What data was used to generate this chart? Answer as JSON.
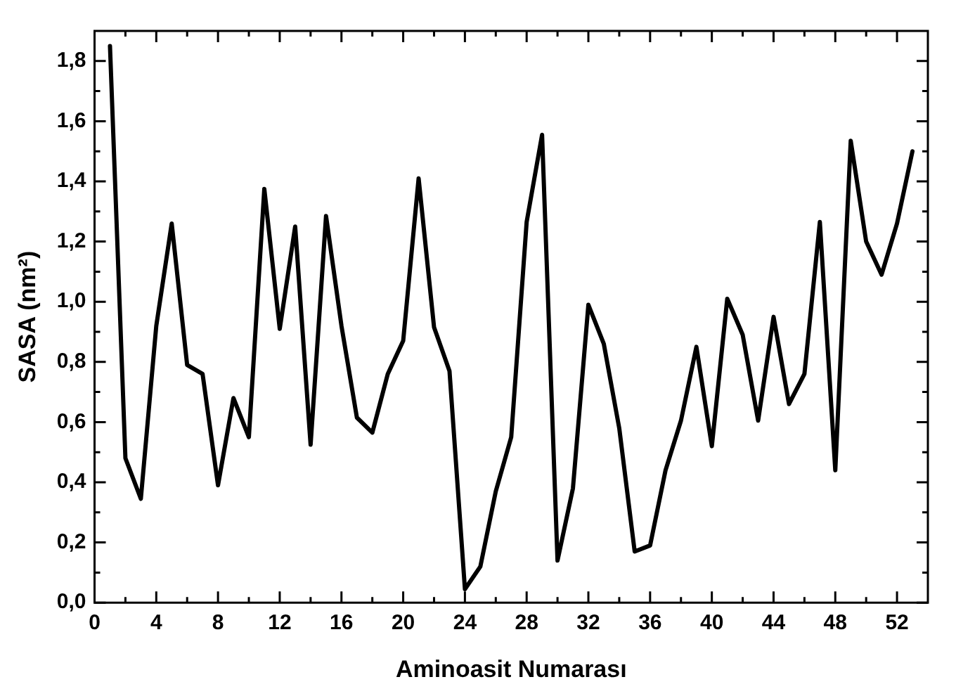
{
  "chart_data": {
    "type": "line",
    "xlabel": "Aminoasit Numarası",
    "ylabel": "SASA (nm²)",
    "color": "#000000",
    "x": [
      1,
      2,
      3,
      4,
      5,
      6,
      7,
      8,
      9,
      10,
      11,
      12,
      13,
      14,
      15,
      16,
      17,
      18,
      19,
      20,
      21,
      22,
      23,
      24,
      25,
      26,
      27,
      28,
      29,
      30,
      31,
      32,
      33,
      34,
      35,
      36,
      37,
      38,
      39,
      40,
      41,
      42,
      43,
      44,
      45,
      46,
      47,
      48,
      49,
      50,
      51,
      52,
      53
    ],
    "values": [
      1.85,
      0.48,
      0.345,
      0.92,
      1.26,
      0.79,
      0.76,
      0.39,
      0.68,
      0.55,
      1.375,
      0.91,
      1.25,
      0.525,
      1.285,
      0.92,
      0.615,
      0.565,
      0.76,
      0.87,
      1.41,
      0.915,
      0.77,
      0.045,
      0.12,
      0.37,
      0.55,
      1.265,
      1.555,
      0.14,
      0.38,
      0.99,
      0.86,
      0.58,
      0.17,
      0.19,
      0.44,
      0.605,
      0.85,
      0.52,
      1.01,
      0.89,
      0.605,
      0.95,
      0.66,
      0.76,
      1.265,
      0.44,
      1.535,
      1.2,
      1.09,
      1.26,
      1.5
    ],
    "xlim": [
      0,
      54
    ],
    "xticks": [
      0,
      {
        "value": 2,
        "label": null
      },
      4,
      {
        "value": 6,
        "label": null
      },
      8,
      {
        "value": 10,
        "label": null
      },
      12,
      {
        "value": 14,
        "label": null
      },
      16,
      {
        "value": 18,
        "label": null
      },
      20,
      {
        "value": 22,
        "label": null
      },
      24,
      {
        "value": 26,
        "label": null
      },
      28,
      {
        "value": 30,
        "label": null
      },
      32,
      {
        "value": 34,
        "label": null
      },
      36,
      {
        "value": 38,
        "label": null
      },
      40,
      {
        "value": 42,
        "label": null
      },
      44,
      {
        "value": 46,
        "label": null
      },
      48,
      {
        "value": 50,
        "label": null
      },
      52
    ],
    "ylim": [
      0,
      1.9
    ],
    "yticks": [
      {
        "value": 0,
        "label": "0,0"
      },
      {
        "value": 0.1,
        "label": null
      },
      {
        "value": 0.2,
        "label": "0,2"
      },
      {
        "value": 0.3,
        "label": null
      },
      {
        "value": 0.4,
        "label": "0,4"
      },
      {
        "value": 0.5,
        "label": null
      },
      {
        "value": 0.6,
        "label": "0,6"
      },
      {
        "value": 0.7,
        "label": null
      },
      {
        "value": 0.8,
        "label": "0,8"
      },
      {
        "value": 0.9,
        "label": null
      },
      {
        "value": 1.0,
        "label": "1,0"
      },
      {
        "value": 1.1,
        "label": null
      },
      {
        "value": 1.2,
        "label": "1,2"
      },
      {
        "value": 1.3,
        "label": null
      },
      {
        "value": 1.4,
        "label": "1,4"
      },
      {
        "value": 1.5,
        "label": null
      },
      {
        "value": 1.6,
        "label": "1,6"
      },
      {
        "value": 1.7,
        "label": null
      },
      {
        "value": 1.8,
        "label": "1,8"
      }
    ],
    "grid": false,
    "legend": false,
    "marker": "none",
    "line_style": "solid"
  }
}
